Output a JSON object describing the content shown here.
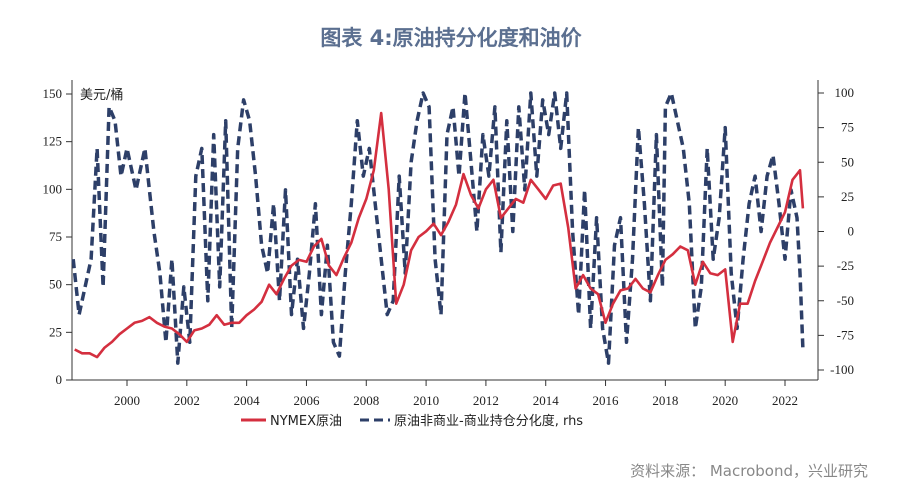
{
  "title": "图表 4:原油持分化度和油价",
  "source": "资料来源： Macrobond，兴业研究",
  "colors": {
    "oil": "#d42f3f",
    "positioning": "#2d3f68"
  },
  "chart_data": {
    "type": "line",
    "title": "图表 4:原油持分化度和油价",
    "ylabel": "美元/桶",
    "xlim": [
      1998.2,
      2022.7
    ],
    "ylim_left": [
      0,
      150
    ],
    "ylim_right": [
      -100,
      100
    ],
    "xticks": [
      "2000",
      "2002",
      "2004",
      "2006",
      "2008",
      "2010",
      "2012",
      "2014",
      "2016",
      "2018",
      "2020",
      "2022"
    ],
    "yticks_left": [
      "0",
      "25",
      "50",
      "75",
      "100",
      "125",
      "150"
    ],
    "yticks_right": [
      "-100",
      "-75",
      "-50",
      "-25",
      "0",
      "25",
      "50",
      "75",
      "100"
    ],
    "legend_position": "bottom",
    "series": [
      {
        "name": "NYMEX原油",
        "axis": "left",
        "style": "solid",
        "x": [
          1998.25,
          1998.5,
          1998.75,
          1999,
          1999.25,
          1999.5,
          1999.75,
          2000,
          2000.25,
          2000.5,
          2000.75,
          2001,
          2001.25,
          2001.5,
          2001.75,
          2002,
          2002.25,
          2002.5,
          2002.75,
          2003,
          2003.25,
          2003.5,
          2003.75,
          2004,
          2004.25,
          2004.5,
          2004.75,
          2005,
          2005.25,
          2005.5,
          2005.75,
          2006,
          2006.25,
          2006.5,
          2006.75,
          2007,
          2007.25,
          2007.5,
          2007.75,
          2008,
          2008.25,
          2008.5,
          2008.75,
          2009,
          2009.25,
          2009.5,
          2009.75,
          2010,
          2010.25,
          2010.5,
          2010.75,
          2011,
          2011.25,
          2011.5,
          2011.75,
          2012,
          2012.25,
          2012.5,
          2012.75,
          2013,
          2013.25,
          2013.5,
          2013.75,
          2014,
          2014.25,
          2014.5,
          2014.75,
          2015,
          2015.25,
          2015.5,
          2015.75,
          2016,
          2016.25,
          2016.5,
          2016.75,
          2017,
          2017.25,
          2017.5,
          2017.75,
          2018,
          2018.25,
          2018.5,
          2018.75,
          2019,
          2019.25,
          2019.5,
          2019.75,
          2020,
          2020.25,
          2020.5,
          2020.75,
          2021,
          2021.25,
          2021.5,
          2021.75,
          2022,
          2022.25,
          2022.5,
          2022.6
        ],
        "values": [
          16,
          14,
          14,
          12,
          17,
          20,
          24,
          27,
          30,
          31,
          33,
          30,
          28,
          27,
          24,
          20,
          26,
          27,
          29,
          34,
          29,
          30,
          30,
          34,
          37,
          41,
          50,
          45,
          53,
          60,
          63,
          62,
          70,
          74,
          60,
          55,
          64,
          72,
          85,
          95,
          110,
          140,
          100,
          40,
          50,
          68,
          75,
          78,
          82,
          76,
          83,
          92,
          108,
          97,
          90,
          100,
          105,
          85,
          90,
          95,
          93,
          105,
          100,
          95,
          102,
          103,
          80,
          48,
          55,
          48,
          45,
          30,
          40,
          47,
          48,
          53,
          48,
          46,
          55,
          63,
          66,
          70,
          68,
          50,
          62,
          56,
          55,
          58,
          20,
          40,
          40,
          52,
          62,
          72,
          80,
          88,
          105,
          110,
          90
        ]
      },
      {
        "name": "原油非商业-商业持仓分化度, rhs",
        "axis": "right",
        "style": "dashed",
        "x": [
          1998.2,
          1998.4,
          1998.6,
          1998.8,
          1999.0,
          1999.2,
          1999.4,
          1999.6,
          1999.8,
          2000.0,
          2000.3,
          2000.6,
          2000.9,
          2001.1,
          2001.3,
          2001.5,
          2001.7,
          2001.9,
          2002.1,
          2002.3,
          2002.5,
          2002.7,
          2002.9,
          2003.1,
          2003.3,
          2003.5,
          2003.7,
          2003.9,
          2004.1,
          2004.3,
          2004.5,
          2004.7,
          2004.9,
          2005.1,
          2005.3,
          2005.5,
          2005.7,
          2005.9,
          2006.1,
          2006.3,
          2006.5,
          2006.7,
          2006.9,
          2007.1,
          2007.3,
          2007.5,
          2007.7,
          2007.9,
          2008.1,
          2008.3,
          2008.5,
          2008.7,
          2008.9,
          2009.1,
          2009.3,
          2009.5,
          2009.7,
          2009.9,
          2010.1,
          2010.3,
          2010.5,
          2010.7,
          2010.9,
          2011.1,
          2011.3,
          2011.5,
          2011.7,
          2011.9,
          2012.1,
          2012.3,
          2012.5,
          2012.7,
          2012.9,
          2013.1,
          2013.3,
          2013.5,
          2013.7,
          2013.9,
          2014.1,
          2014.3,
          2014.5,
          2014.7,
          2014.9,
          2015.1,
          2015.3,
          2015.5,
          2015.7,
          2015.9,
          2016.1,
          2016.3,
          2016.5,
          2016.7,
          2016.9,
          2017.1,
          2017.3,
          2017.5,
          2017.7,
          2017.9,
          2018.0,
          2018.2,
          2018.4,
          2018.6,
          2018.8,
          2019.0,
          2019.2,
          2019.4,
          2019.6,
          2019.8,
          2020.0,
          2020.2,
          2020.4,
          2020.6,
          2020.8,
          2021.0,
          2021.2,
          2021.4,
          2021.6,
          2021.8,
          2022.0,
          2022.2,
          2022.4,
          2022.5,
          2022.6
        ],
        "values": [
          -20,
          -60,
          -40,
          -20,
          60,
          -40,
          90,
          80,
          40,
          60,
          30,
          60,
          0,
          -30,
          -80,
          -20,
          -95,
          -40,
          -80,
          40,
          60,
          -50,
          70,
          -40,
          80,
          -70,
          60,
          95,
          80,
          40,
          -10,
          -30,
          20,
          -50,
          30,
          -60,
          -20,
          -70,
          -30,
          20,
          -60,
          -10,
          -80,
          -90,
          -30,
          20,
          80,
          40,
          60,
          20,
          -20,
          -60,
          -50,
          40,
          -30,
          50,
          80,
          100,
          90,
          -20,
          -60,
          70,
          90,
          40,
          100,
          50,
          0,
          70,
          40,
          90,
          -15,
          80,
          0,
          90,
          30,
          100,
          40,
          95,
          70,
          100,
          60,
          100,
          0,
          -60,
          30,
          -70,
          10,
          -70,
          -95,
          -10,
          10,
          -80,
          -20,
          75,
          20,
          -50,
          70,
          -40,
          90,
          100,
          80,
          60,
          20,
          -70,
          -40,
          60,
          -20,
          10,
          75,
          -30,
          -70,
          -20,
          20,
          40,
          0,
          40,
          55,
          20,
          -20,
          30,
          10,
          -30,
          -85
        ]
      }
    ]
  }
}
